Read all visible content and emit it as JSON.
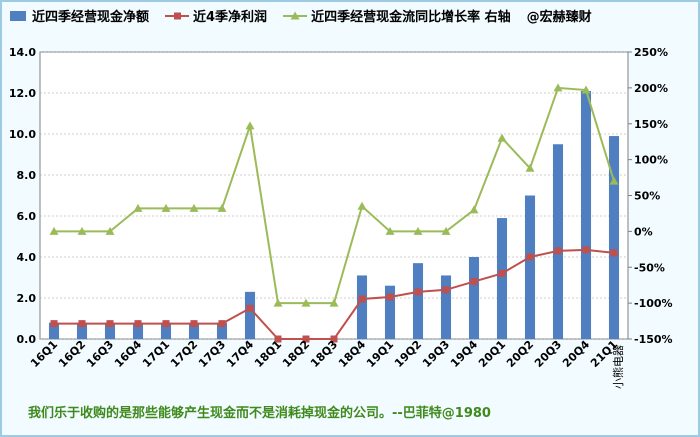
{
  "footer_quote": "我们乐于收购的是那些能够产生现金而不是消耗掉现金的公司。--巴菲特@1980",
  "colors": {
    "bar": "#4f7fc0",
    "profit_line": "#c0504d",
    "growth_line": "#9bbb59",
    "grid": "#a0a0a0",
    "axis_text": "#000000"
  },
  "chart_data": {
    "type": "bar+line",
    "categories": [
      "16Q1",
      "16Q2",
      "16Q3",
      "16Q4",
      "17Q1",
      "17Q2",
      "17Q3",
      "17Q4",
      "18Q1",
      "18Q2",
      "18Q3",
      "18Q4",
      "19Q1",
      "19Q2",
      "19Q3",
      "19Q4",
      "20Q1",
      "20Q2",
      "20Q3",
      "20Q4",
      "21Q1"
    ],
    "extra_x_label": "小熊电器",
    "legend": [
      {
        "key": "bar",
        "label": "近四季经营现金净额"
      },
      {
        "key": "profit",
        "label": "近4季净利润"
      },
      {
        "key": "growth",
        "label": "近四季经营现金流同比增长率 右轴"
      }
    ],
    "legend_note": "@宏赫臻财",
    "series": [
      {
        "name": "近四季经营现金净额",
        "type": "bar",
        "axis": "left",
        "values": [
          0.8,
          0.8,
          0.8,
          0.8,
          0.8,
          0.8,
          0.8,
          2.3,
          null,
          null,
          null,
          3.1,
          2.6,
          3.7,
          3.1,
          4.0,
          5.9,
          7.0,
          9.5,
          12.1,
          9.9
        ]
      },
      {
        "name": "近4季净利润",
        "type": "line",
        "axis": "left",
        "values": [
          0.75,
          0.75,
          0.75,
          0.75,
          0.75,
          0.75,
          0.75,
          1.5,
          0,
          0,
          0,
          1.95,
          2.05,
          2.3,
          2.4,
          2.8,
          3.2,
          4.0,
          4.3,
          4.35,
          4.2
        ]
      },
      {
        "name": "近四季经营现金流同比增长率 右轴",
        "type": "line",
        "axis": "right",
        "values": [
          0,
          0,
          0,
          32,
          32,
          32,
          32,
          147,
          -100,
          -100,
          -100,
          35,
          0,
          0,
          0,
          30,
          130,
          88,
          200,
          197,
          70
        ]
      }
    ],
    "y_left": {
      "min": 0,
      "max": 14,
      "step": 2,
      "ticks": [
        "0.0",
        "2.0",
        "4.0",
        "6.0",
        "8.0",
        "10.0",
        "12.0",
        "14.0"
      ]
    },
    "y_right": {
      "min": -150,
      "max": 250,
      "step": 50,
      "ticks": [
        "-150%",
        "-100%",
        "-50%",
        "0%",
        "50%",
        "100%",
        "150%",
        "200%",
        "250%"
      ]
    },
    "grid": true,
    "legend_position": "top"
  }
}
